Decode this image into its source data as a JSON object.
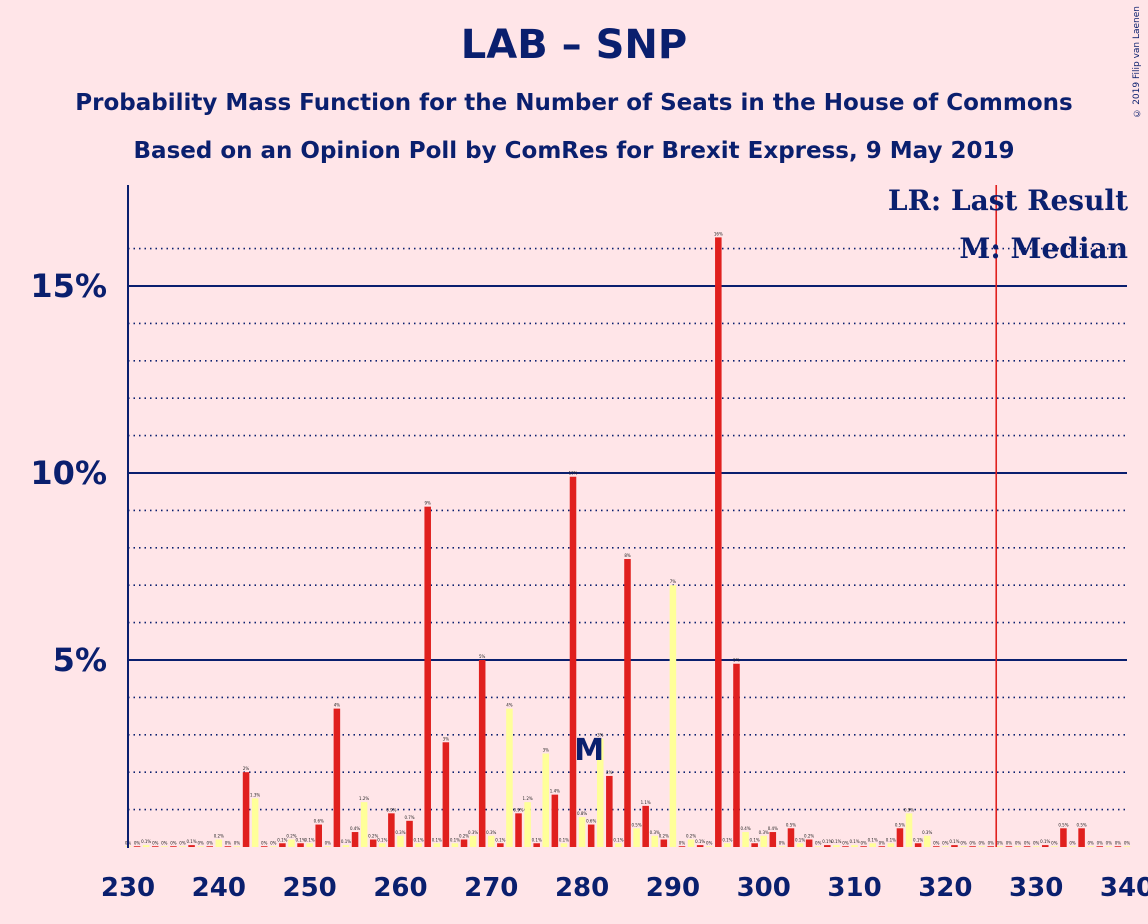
{
  "title": "LAB – SNP",
  "subtitle1": "Probability Mass Function for the Number of Seats in the House of Commons",
  "subtitle2": "Based on an Opinion Poll by ComRes for Brexit Express, 9 May 2019",
  "copyright": "© 2019 Filip van Laenen",
  "colors": {
    "background": "#FFE5E8",
    "navy": "#0A1F6E",
    "red_bar": "#E0201E",
    "yellow_bar": "#FFFF99",
    "last_result_line": "#E0201E"
  },
  "chart_data": {
    "type": "bar",
    "xlim": [
      230,
      340
    ],
    "ylim": [
      0,
      17.7
    ],
    "x_ticks": [
      "230",
      "240",
      "250",
      "260",
      "270",
      "280",
      "290",
      "300",
      "310",
      "320",
      "330",
      "340"
    ],
    "y_ticks": [
      {
        "value": 5,
        "label": "5%"
      },
      {
        "value": 10,
        "label": "10%"
      },
      {
        "value": 15,
        "label": "15%"
      }
    ],
    "minor_gridlines": [
      1,
      2,
      3,
      4,
      6,
      7,
      8,
      9,
      11,
      12,
      13,
      14,
      16
    ],
    "legend": {
      "lr": "LR: Last Result",
      "m": "M: Median"
    },
    "last_result_seat": 326,
    "median_seat": 281,
    "median_label": "M",
    "series": [
      {
        "color": "#FFFF99",
        "points": [
          {
            "x": 230,
            "v": 0.02,
            "l": "0%"
          },
          {
            "x": 231,
            "v": 0.02,
            "l": "0%"
          },
          {
            "x": 232,
            "v": 0.05,
            "l": "0.1%"
          },
          {
            "x": 233,
            "v": 0.02,
            "l": "0%"
          },
          {
            "x": 234,
            "v": 0.02,
            "l": "0%"
          },
          {
            "x": 235,
            "v": 0.02,
            "l": "0%"
          },
          {
            "x": 236,
            "v": 0.02,
            "l": "0%"
          },
          {
            "x": 237,
            "v": 0.05,
            "l": "0.1%"
          },
          {
            "x": 238,
            "v": 0.02,
            "l": "0%"
          },
          {
            "x": 239,
            "v": 0.02,
            "l": "0%"
          },
          {
            "x": 240,
            "v": 0.2,
            "l": "0.2%"
          },
          {
            "x": 241,
            "v": 0.02,
            "l": "0%"
          },
          {
            "x": 242,
            "v": 0.02,
            "l": "0%"
          },
          {
            "x": 243,
            "v": 2.0,
            "l": "2%"
          },
          {
            "x": 244,
            "v": 1.3,
            "l": "1.3%"
          },
          {
            "x": 245,
            "v": 0.02,
            "l": "0%"
          },
          {
            "x": 246,
            "v": 0.02,
            "l": "0%"
          },
          {
            "x": 247,
            "v": 0.1,
            "l": "0.1%"
          },
          {
            "x": 248,
            "v": 0.2,
            "l": "0.2%"
          },
          {
            "x": 249,
            "v": 0.1,
            "l": "0.1%"
          },
          {
            "x": 250,
            "v": 0.1,
            "l": "0.1%"
          },
          {
            "x": 251,
            "v": 0.6,
            "l": "0.6%"
          },
          {
            "x": 252,
            "v": 0.02,
            "l": "0%"
          },
          {
            "x": 253,
            "v": 3.7,
            "l": "4%"
          },
          {
            "x": 254,
            "v": 0.05,
            "l": "0.1%"
          },
          {
            "x": 255,
            "v": 0.4,
            "l": "0.4%"
          },
          {
            "x": 256,
            "v": 1.2,
            "l": "1.2%"
          },
          {
            "x": 257,
            "v": 0.2,
            "l": "0.2%"
          },
          {
            "x": 258,
            "v": 0.1,
            "l": "0.1%"
          },
          {
            "x": 259,
            "v": 0.9,
            "l": "0.9%"
          },
          {
            "x": 260,
            "v": 0.3,
            "l": "0.3%"
          },
          {
            "x": 261,
            "v": 0.7,
            "l": "0.7%"
          },
          {
            "x": 262,
            "v": 0.1,
            "l": "0.1%"
          },
          {
            "x": 263,
            "v": 9.1,
            "l": "9%"
          },
          {
            "x": 264,
            "v": 0.1,
            "l": "0.1%"
          },
          {
            "x": 265,
            "v": 2.8,
            "l": "3%"
          },
          {
            "x": 266,
            "v": 0.1,
            "l": "0.1%"
          },
          {
            "x": 267,
            "v": 0.2,
            "l": "0.2%"
          },
          {
            "x": 268,
            "v": 0.3,
            "l": "0.3%"
          },
          {
            "x": 269,
            "v": 5.0,
            "l": "5%"
          },
          {
            "x": 270,
            "v": 0.3,
            "l": "0.3%"
          },
          {
            "x": 271,
            "v": 0.1,
            "l": "0.1%"
          },
          {
            "x": 272,
            "v": 3.7,
            "l": "4%"
          },
          {
            "x": 273,
            "v": 0.9,
            "l": "0.9%"
          },
          {
            "x": 274,
            "v": 1.2,
            "l": "1.2%"
          },
          {
            "x": 275,
            "v": 0.1,
            "l": "0.1%"
          },
          {
            "x": 276,
            "v": 2.5,
            "l": "3%"
          },
          {
            "x": 277,
            "v": 1.4,
            "l": "1.4%"
          },
          {
            "x": 278,
            "v": 0.1,
            "l": "0.1%"
          },
          {
            "x": 279,
            "v": 9.9,
            "l": "10%"
          },
          {
            "x": 280,
            "v": 0.8,
            "l": "0.8%"
          },
          {
            "x": 281,
            "v": 0.6,
            "l": "0.6%"
          },
          {
            "x": 282,
            "v": 2.9,
            "l": "3%"
          },
          {
            "x": 283,
            "v": 1.9,
            "l": "2%"
          },
          {
            "x": 284,
            "v": 0.1,
            "l": "0.1%"
          },
          {
            "x": 285,
            "v": 7.7,
            "l": "8%"
          },
          {
            "x": 286,
            "v": 0.5,
            "l": "0.5%"
          },
          {
            "x": 287,
            "v": 1.1,
            "l": "1.1%"
          },
          {
            "x": 288,
            "v": 0.3,
            "l": "0.3%"
          },
          {
            "x": 289,
            "v": 0.2,
            "l": "0.2%"
          },
          {
            "x": 290,
            "v": 7.0,
            "l": "7%"
          },
          {
            "x": 291,
            "v": 0.02,
            "l": "0%"
          },
          {
            "x": 292,
            "v": 0.2,
            "l": "0.2%"
          },
          {
            "x": 293,
            "v": 0.05,
            "l": "0.1%"
          },
          {
            "x": 294,
            "v": 0.02,
            "l": "0%"
          },
          {
            "x": 295,
            "v": 16.3,
            "l": "16%"
          },
          {
            "x": 296,
            "v": 0.1,
            "l": "0.1%"
          },
          {
            "x": 297,
            "v": 4.9,
            "l": "5%"
          },
          {
            "x": 298,
            "v": 0.4,
            "l": "0.4%"
          },
          {
            "x": 299,
            "v": 0.1,
            "l": "0.1%"
          },
          {
            "x": 300,
            "v": 0.3,
            "l": "0.3%"
          },
          {
            "x": 301,
            "v": 0.4,
            "l": "0.4%"
          },
          {
            "x": 302,
            "v": 0.02,
            "l": "0%"
          },
          {
            "x": 303,
            "v": 0.5,
            "l": "0.5%"
          },
          {
            "x": 304,
            "v": 0.1,
            "l": "0.1%"
          },
          {
            "x": 305,
            "v": 0.2,
            "l": "0.2%"
          },
          {
            "x": 306,
            "v": 0.02,
            "l": "0%"
          },
          {
            "x": 307,
            "v": 0.05,
            "l": "0.1%"
          },
          {
            "x": 308,
            "v": 0.05,
            "l": "0.1%"
          },
          {
            "x": 309,
            "v": 0.02,
            "l": "0%"
          },
          {
            "x": 310,
            "v": 0.05,
            "l": "0.1%"
          },
          {
            "x": 311,
            "v": 0.02,
            "l": "0%"
          },
          {
            "x": 312,
            "v": 0.1,
            "l": "0.1%"
          },
          {
            "x": 313,
            "v": 0.02,
            "l": "0%"
          },
          {
            "x": 314,
            "v": 0.1,
            "l": "0.1%"
          },
          {
            "x": 315,
            "v": 0.5,
            "l": "0.5%"
          },
          {
            "x": 316,
            "v": 0.9,
            "l": "0.9%"
          },
          {
            "x": 317,
            "v": 0.1,
            "l": "0.1%"
          },
          {
            "x": 318,
            "v": 0.3,
            "l": "0.3%"
          },
          {
            "x": 319,
            "v": 0.02,
            "l": "0%"
          },
          {
            "x": 320,
            "v": 0.02,
            "l": "0%"
          },
          {
            "x": 321,
            "v": 0.05,
            "l": "0.1%"
          },
          {
            "x": 322,
            "v": 0.02,
            "l": "0%"
          },
          {
            "x": 323,
            "v": 0.02,
            "l": "0%"
          },
          {
            "x": 324,
            "v": 0.02,
            "l": "0%"
          },
          {
            "x": 325,
            "v": 0.02,
            "l": "0%"
          },
          {
            "x": 326,
            "v": 0.02,
            "l": "0%"
          },
          {
            "x": 327,
            "v": 0.02,
            "l": "0%"
          },
          {
            "x": 328,
            "v": 0.02,
            "l": "0%"
          },
          {
            "x": 329,
            "v": 0.02,
            "l": "0%"
          },
          {
            "x": 330,
            "v": 0.02,
            "l": "0%"
          },
          {
            "x": 331,
            "v": 0.05,
            "l": "0.1%"
          },
          {
            "x": 332,
            "v": 0.02,
            "l": "0%"
          },
          {
            "x": 333,
            "v": 0.5,
            "l": "0.5%"
          },
          {
            "x": 334,
            "v": 0.02,
            "l": "0%"
          },
          {
            "x": 335,
            "v": 0.5,
            "l": "0.5%"
          },
          {
            "x": 336,
            "v": 0.02,
            "l": "0%"
          },
          {
            "x": 337,
            "v": 0.02,
            "l": "0%"
          },
          {
            "x": 338,
            "v": 0.02,
            "l": "0%"
          },
          {
            "x": 339,
            "v": 0.02,
            "l": "0%"
          },
          {
            "x": 340,
            "v": 0.02,
            "l": "0%"
          }
        ]
      }
    ]
  }
}
